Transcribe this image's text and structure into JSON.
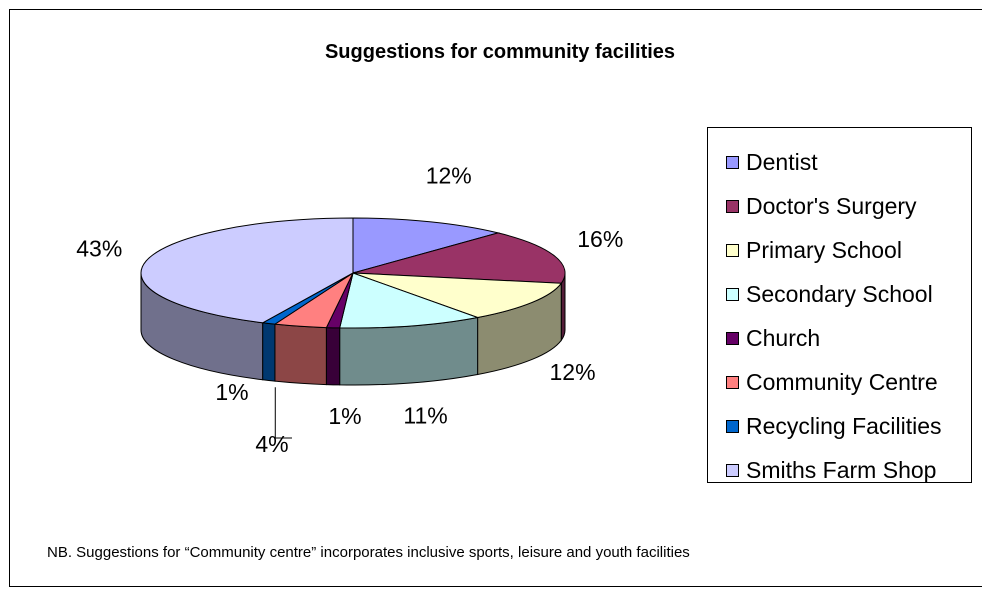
{
  "chart_data": {
    "type": "pie",
    "title": "Suggestions for community facilities",
    "slices": [
      {
        "name": "Dentist",
        "value": 12,
        "label": "12%",
        "color": "#9999FF"
      },
      {
        "name": "Doctor's Surgery",
        "value": 16,
        "label": "16%",
        "color": "#993366"
      },
      {
        "name": "Primary School",
        "value": 12,
        "label": "12%",
        "color": "#FFFFCC"
      },
      {
        "name": "Secondary School",
        "value": 11,
        "label": "11%",
        "color": "#CCFFFF"
      },
      {
        "name": "Church",
        "value": 1,
        "label": "1%",
        "color": "#660066"
      },
      {
        "name": "Community Centre",
        "value": 4,
        "label": "4%",
        "color": "#FF8080"
      },
      {
        "name": "Recycling Facilities",
        "value": 1,
        "label": "1%",
        "color": "#0066CC"
      },
      {
        "name": "Smiths Farm Shop",
        "value": 43,
        "label": "43%",
        "color": "#CCCCFF"
      }
    ],
    "legend_position": "right",
    "style": "3d-pie"
  },
  "note": "NB. Suggestions for “Community centre” incorporates inclusive sports, leisure and youth facilities"
}
